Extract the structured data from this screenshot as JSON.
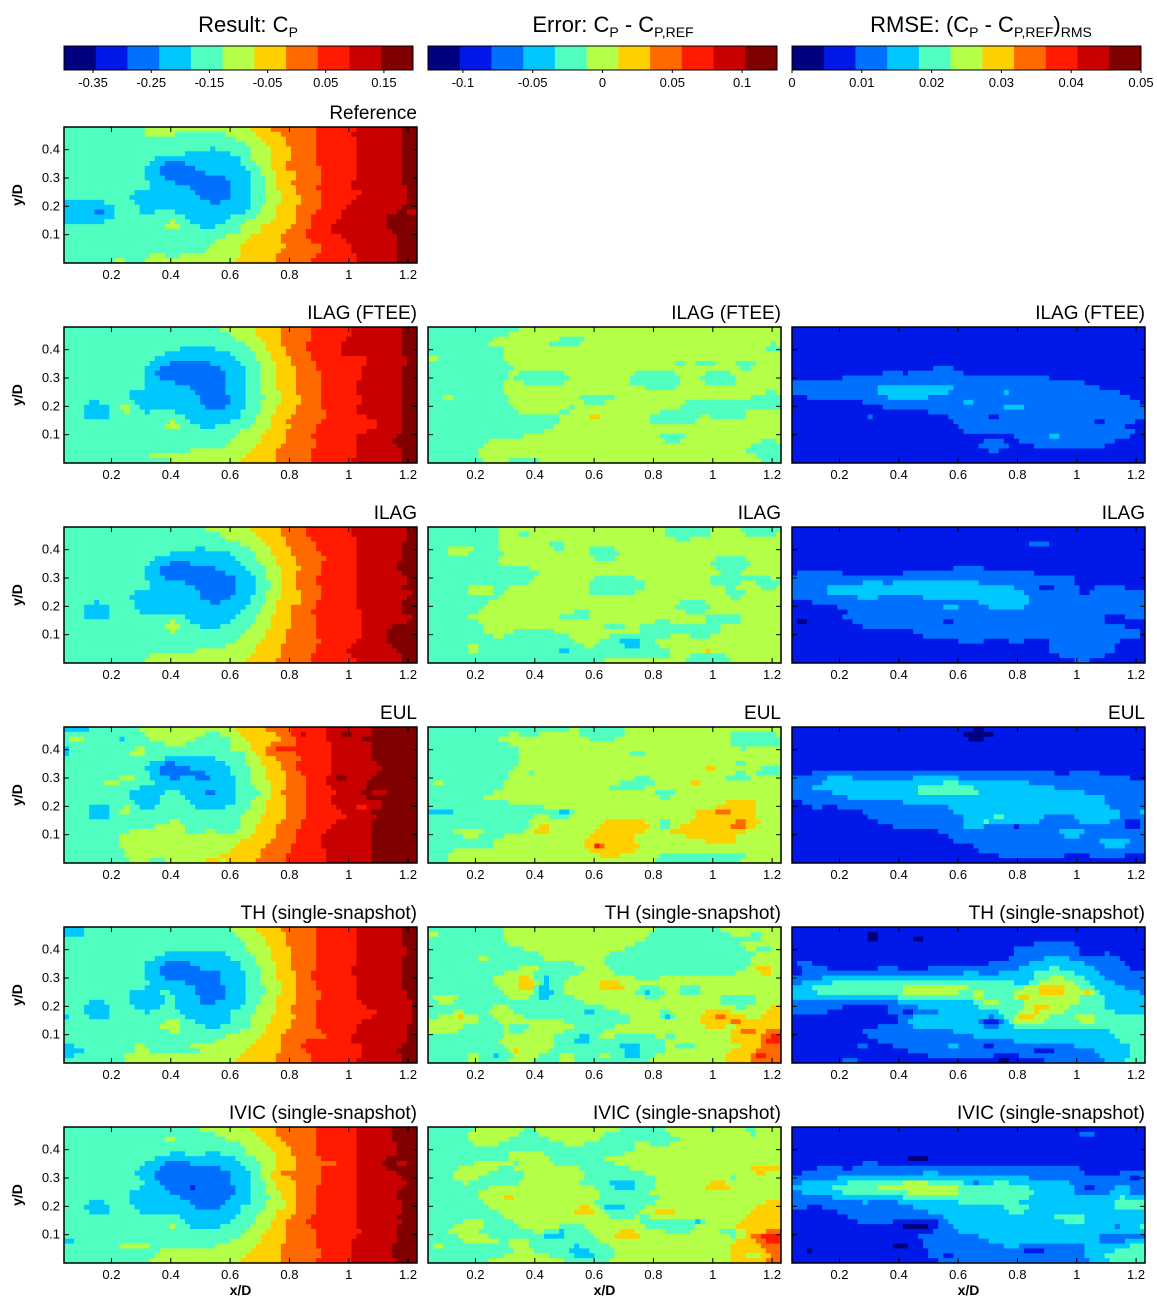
{
  "figure": {
    "header": {
      "result": {
        "main": "Result: C",
        "sub": "P",
        "tail": ""
      },
      "error": {
        "main": "Error: C",
        "sub": "P",
        "mid": " - C",
        "sub2": "P,REF"
      },
      "rmse": {
        "main": "RMSE: (C",
        "sub": "P",
        "mid": " - C",
        "sub2": "P,REF",
        "close": ")",
        "sub3": "RMS"
      }
    },
    "colorbars": [
      {
        "id": "result",
        "range": [
          -0.4,
          0.2
        ],
        "ticks": [
          "-0.35",
          "-0.25",
          "-0.15",
          "-0.05",
          "0.05",
          "0.15"
        ],
        "tick_values": [
          -0.35,
          -0.25,
          -0.15,
          -0.05,
          0.05,
          0.15
        ]
      },
      {
        "id": "error",
        "range": [
          -0.125,
          0.125
        ],
        "ticks": [
          "-0.1",
          "-0.05",
          "0",
          "0.05",
          "0.1"
        ],
        "tick_values": [
          -0.1,
          -0.05,
          0,
          0.05,
          0.1
        ]
      },
      {
        "id": "rmse",
        "range": [
          0,
          0.05
        ],
        "ticks": [
          "0",
          "0.01",
          "0.02",
          "0.03",
          "0.04",
          "0.05"
        ],
        "tick_values": [
          0,
          0.01,
          0.02,
          0.03,
          0.04,
          0.05
        ]
      }
    ],
    "palette": [
      "#000080",
      "#0018e8",
      "#0070ff",
      "#00c8ff",
      "#50ffc0",
      "#b4ff48",
      "#ffd000",
      "#ff6a00",
      "#ff1a00",
      "#c80000",
      "#800000"
    ]
  },
  "chart_data": {
    "type": "heatmap",
    "xlabel": "x/D",
    "ylabel": "y/D",
    "x_ticks": [
      "0.2",
      "0.4",
      "0.6",
      "0.8",
      "1",
      "1.2"
    ],
    "x_tick_values": [
      0.2,
      0.4,
      0.6,
      0.8,
      1.0,
      1.2
    ],
    "y_ticks": [
      "0.1",
      "0.2",
      "0.3",
      "0.4"
    ],
    "y_tick_values": [
      0.1,
      0.2,
      0.3,
      0.4
    ],
    "xlim": [
      0.04,
      1.23
    ],
    "ylim": [
      0.0,
      0.48
    ],
    "rows": [
      {
        "label": "Reference",
        "panels": [
          "result"
        ]
      },
      {
        "label": "ILAG (FTEE)",
        "panels": [
          "result",
          "error",
          "rmse"
        ]
      },
      {
        "label": "ILAG",
        "panels": [
          "result",
          "error",
          "rmse"
        ]
      },
      {
        "label": "EUL",
        "panels": [
          "result",
          "error",
          "rmse"
        ]
      },
      {
        "label": "TH (single-snapshot)",
        "panels": [
          "result",
          "error",
          "rmse"
        ]
      },
      {
        "label": "IVIC (single-snapshot)",
        "panels": [
          "result",
          "error",
          "rmse"
        ]
      }
    ]
  }
}
